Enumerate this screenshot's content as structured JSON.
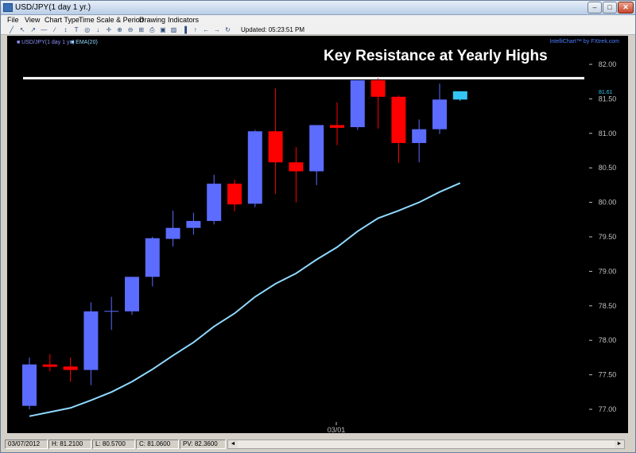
{
  "window": {
    "title": "USD/JPY(1 day  1 yr.)",
    "minimize_label": "–",
    "maximize_label": "□",
    "close_label": "✕"
  },
  "menu": [
    "File",
    "View",
    "Chart Type",
    "Time Scale & Period",
    "Drawing",
    "Indicators"
  ],
  "toolbar": {
    "icons": [
      "draw-line-icon",
      "arrow-icon",
      "cursor-icon",
      "line-icon",
      "slope-icon",
      "arrow-up-down-icon",
      "text-icon",
      "circle-icon",
      "arrow-down-icon",
      "plus-icon",
      "zoom-in-icon",
      "zoom-out-icon",
      "zoom-fit-icon",
      "print-icon",
      "save-icon",
      "color-icon",
      "bar-chart-icon",
      "line-chart-icon",
      "arrow-left-icon",
      "arrow-right-icon",
      "refresh-icon"
    ],
    "glyphs": [
      "╱",
      "↖",
      "↗",
      "—",
      "∕",
      "↕",
      "T",
      "◎",
      "↓",
      "✛",
      "⊕",
      "⊖",
      "⊞",
      "⎙",
      "▣",
      "▨",
      "▐",
      "↑",
      "←",
      "→",
      "↻"
    ],
    "updated": "Updated: 05:23:51 PM"
  },
  "chart_data": {
    "type": "candlestick",
    "symbol_label": "USD/JPY(1 day  1 yr.)",
    "indicator_label": "EMA(20)",
    "branding": "IntelliChart™ by FXtrek.com",
    "annotation": "Key Resistance at Yearly Highs",
    "resistance_level": 81.8,
    "current_price_label": "81.61",
    "x_tick_labels": [
      "03/01"
    ],
    "y_ticks": [
      "82.00",
      "81.50",
      "81.00",
      "80.50",
      "80.00",
      "79.50",
      "79.00",
      "78.50",
      "78.00",
      "77.50",
      "77.00"
    ],
    "ylim": [
      76.75,
      82.25
    ],
    "candles": [
      {
        "o": 77.05,
        "h": 77.75,
        "l": 77.0,
        "c": 77.65,
        "color": "up"
      },
      {
        "o": 77.65,
        "h": 77.8,
        "l": 77.55,
        "c": 77.62,
        "color": "down"
      },
      {
        "o": 77.62,
        "h": 77.75,
        "l": 77.4,
        "c": 77.57,
        "color": "down"
      },
      {
        "o": 77.57,
        "h": 78.55,
        "l": 77.35,
        "c": 78.42,
        "color": "up"
      },
      {
        "o": 78.42,
        "h": 78.63,
        "l": 78.15,
        "c": 78.42,
        "color": "doji"
      },
      {
        "o": 78.42,
        "h": 78.92,
        "l": 78.37,
        "c": 78.92,
        "color": "up"
      },
      {
        "o": 78.92,
        "h": 79.5,
        "l": 78.78,
        "c": 79.48,
        "color": "up"
      },
      {
        "o": 79.47,
        "h": 79.88,
        "l": 79.36,
        "c": 79.63,
        "color": "up"
      },
      {
        "o": 79.63,
        "h": 79.85,
        "l": 79.53,
        "c": 79.73,
        "color": "up"
      },
      {
        "o": 79.73,
        "h": 80.4,
        "l": 79.68,
        "c": 80.27,
        "color": "up"
      },
      {
        "o": 80.27,
        "h": 80.33,
        "l": 79.87,
        "c": 79.97,
        "color": "down"
      },
      {
        "o": 79.98,
        "h": 81.05,
        "l": 79.93,
        "c": 81.03,
        "color": "up"
      },
      {
        "o": 81.03,
        "h": 81.65,
        "l": 80.12,
        "c": 80.58,
        "color": "down"
      },
      {
        "o": 80.58,
        "h": 80.8,
        "l": 80.0,
        "c": 80.45,
        "color": "down"
      },
      {
        "o": 80.45,
        "h": 81.12,
        "l": 80.25,
        "c": 81.12,
        "color": "up"
      },
      {
        "o": 81.12,
        "h": 81.45,
        "l": 80.83,
        "c": 81.08,
        "color": "down"
      },
      {
        "o": 81.09,
        "h": 81.77,
        "l": 81.05,
        "c": 81.77,
        "color": "up"
      },
      {
        "o": 81.77,
        "h": 81.8,
        "l": 81.07,
        "c": 81.53,
        "color": "down"
      },
      {
        "o": 81.53,
        "h": 81.55,
        "l": 80.57,
        "c": 80.86,
        "color": "down"
      },
      {
        "o": 80.86,
        "h": 81.2,
        "l": 80.58,
        "c": 81.06,
        "color": "up"
      },
      {
        "o": 81.06,
        "h": 81.72,
        "l": 80.99,
        "c": 81.49,
        "color": "up"
      },
      {
        "o": 81.49,
        "h": 81.61,
        "l": 81.47,
        "c": 81.61,
        "color": "current"
      }
    ],
    "ema20": [
      76.9,
      76.96,
      77.02,
      77.13,
      77.25,
      77.4,
      77.58,
      77.78,
      77.97,
      78.2,
      78.39,
      78.63,
      78.82,
      78.97,
      79.17,
      79.35,
      79.58,
      79.77,
      79.88,
      80.0,
      80.15,
      80.28
    ],
    "colors": {
      "up": "#5b6cff",
      "down": "#ff0000",
      "doji": "#5b6cff",
      "current": "#33c6f2",
      "ema": "#8fd9ff",
      "axis_text": "#c0c0c0",
      "resistance": "#ffffff"
    }
  },
  "statusbar": {
    "date": "03/07/2012",
    "high": "H: 81.2100",
    "low": "L: 80.5700",
    "close": "C: 81.0600",
    "pv": "PV: 82.3600",
    "scroll_left": "◄",
    "scroll_right": "►"
  }
}
